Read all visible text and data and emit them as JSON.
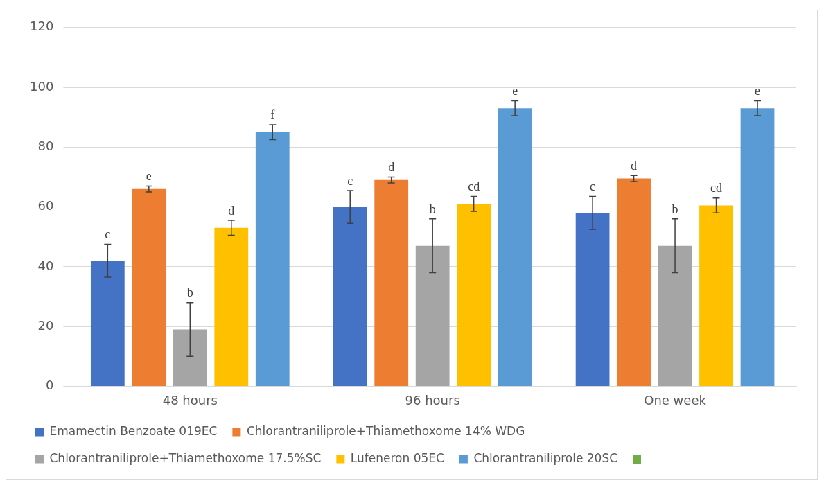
{
  "chart_data": {
    "type": "bar",
    "categories": [
      "48 hours",
      "96 hours",
      "One week"
    ],
    "ylim": [
      0,
      120
    ],
    "yticks": [
      0,
      20,
      40,
      60,
      80,
      100,
      120
    ],
    "grid": "y",
    "legend": "bottom",
    "series": [
      {
        "name": "Emamectin Benzoate 019EC",
        "color": "#4472c4",
        "values": [
          42,
          60,
          58
        ],
        "errors": [
          5.5,
          5.5,
          5.5
        ],
        "value_labels": [
          "c",
          "c",
          "c"
        ]
      },
      {
        "name": "Chlorantraniliprole+Thiamethoxome 14% WDG",
        "color": "#ed7d31",
        "values": [
          66,
          69,
          69.5
        ],
        "errors": [
          1,
          1,
          1
        ],
        "value_labels": [
          "e",
          "d",
          "d"
        ]
      },
      {
        "name": "Chlorantraniliprole+Thiamethoxome 17.5%SC",
        "color": "#a5a5a5",
        "values": [
          19,
          47,
          47
        ],
        "errors": [
          9,
          9,
          9
        ],
        "value_labels": [
          "b",
          "b",
          "b"
        ]
      },
      {
        "name": "Lufeneron 05EC",
        "color": "#ffc000",
        "values": [
          53,
          61,
          60.5
        ],
        "errors": [
          2.5,
          2.5,
          2.5
        ],
        "value_labels": [
          "d",
          "cd",
          "cd"
        ]
      },
      {
        "name": "Chlorantraniliprole 20SC",
        "color": "#5b9bd5",
        "values": [
          85,
          93,
          93
        ],
        "errors": [
          2.5,
          2.5,
          2.5
        ],
        "value_labels": [
          "f",
          "e",
          "e"
        ]
      }
    ]
  }
}
